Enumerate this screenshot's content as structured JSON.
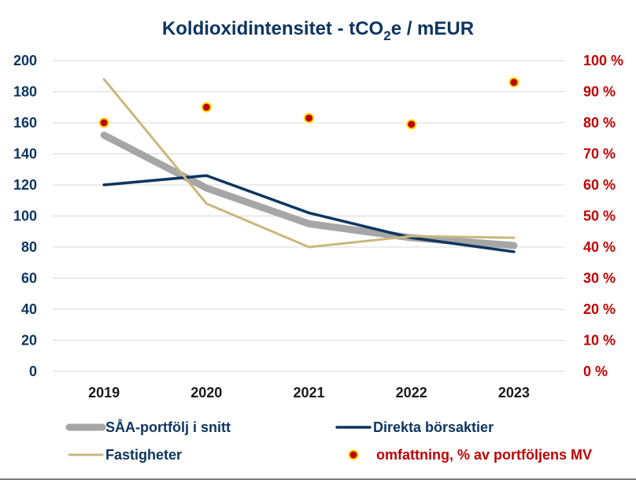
{
  "chart_data": {
    "type": "line",
    "title": "Koldioxidintensitet - tCO",
    "title_sub": "2",
    "title_tail": "e / mEUR",
    "categories": [
      "2019",
      "2020",
      "2021",
      "2022",
      "2023"
    ],
    "ylim_left": [
      0,
      200
    ],
    "ylim_right": [
      0,
      100
    ],
    "yticks_left": [
      "0",
      "20",
      "40",
      "60",
      "80",
      "100",
      "120",
      "140",
      "160",
      "180",
      "200"
    ],
    "yticks_right": [
      "0 %",
      "10 %",
      "20 %",
      "30 %",
      "40 %",
      "50 %",
      "60 %",
      "70 %",
      "80 %",
      "90 %",
      "100 %"
    ],
    "grid": true,
    "legend_position": "bottom",
    "series": [
      {
        "name": "SÅA-portfölj i snitt",
        "axis": "left",
        "style": "line",
        "color": "#a6a6a6",
        "values": [
          152,
          118,
          95,
          86,
          81
        ]
      },
      {
        "name": "Direkta börsaktier",
        "axis": "left",
        "style": "line",
        "color": "#0d3560",
        "values": [
          120,
          126,
          102,
          86,
          77
        ]
      },
      {
        "name": "Fastigheter",
        "axis": "left",
        "style": "line",
        "color": "#c9b77c",
        "values": [
          188,
          108,
          80,
          87,
          86
        ]
      },
      {
        "name": "omfattning, % av portföljens MV",
        "axis": "right",
        "style": "marker",
        "color": "#c00000",
        "fill": "#ffd700",
        "values": [
          80,
          85,
          81.5,
          79.5,
          93
        ]
      }
    ]
  }
}
